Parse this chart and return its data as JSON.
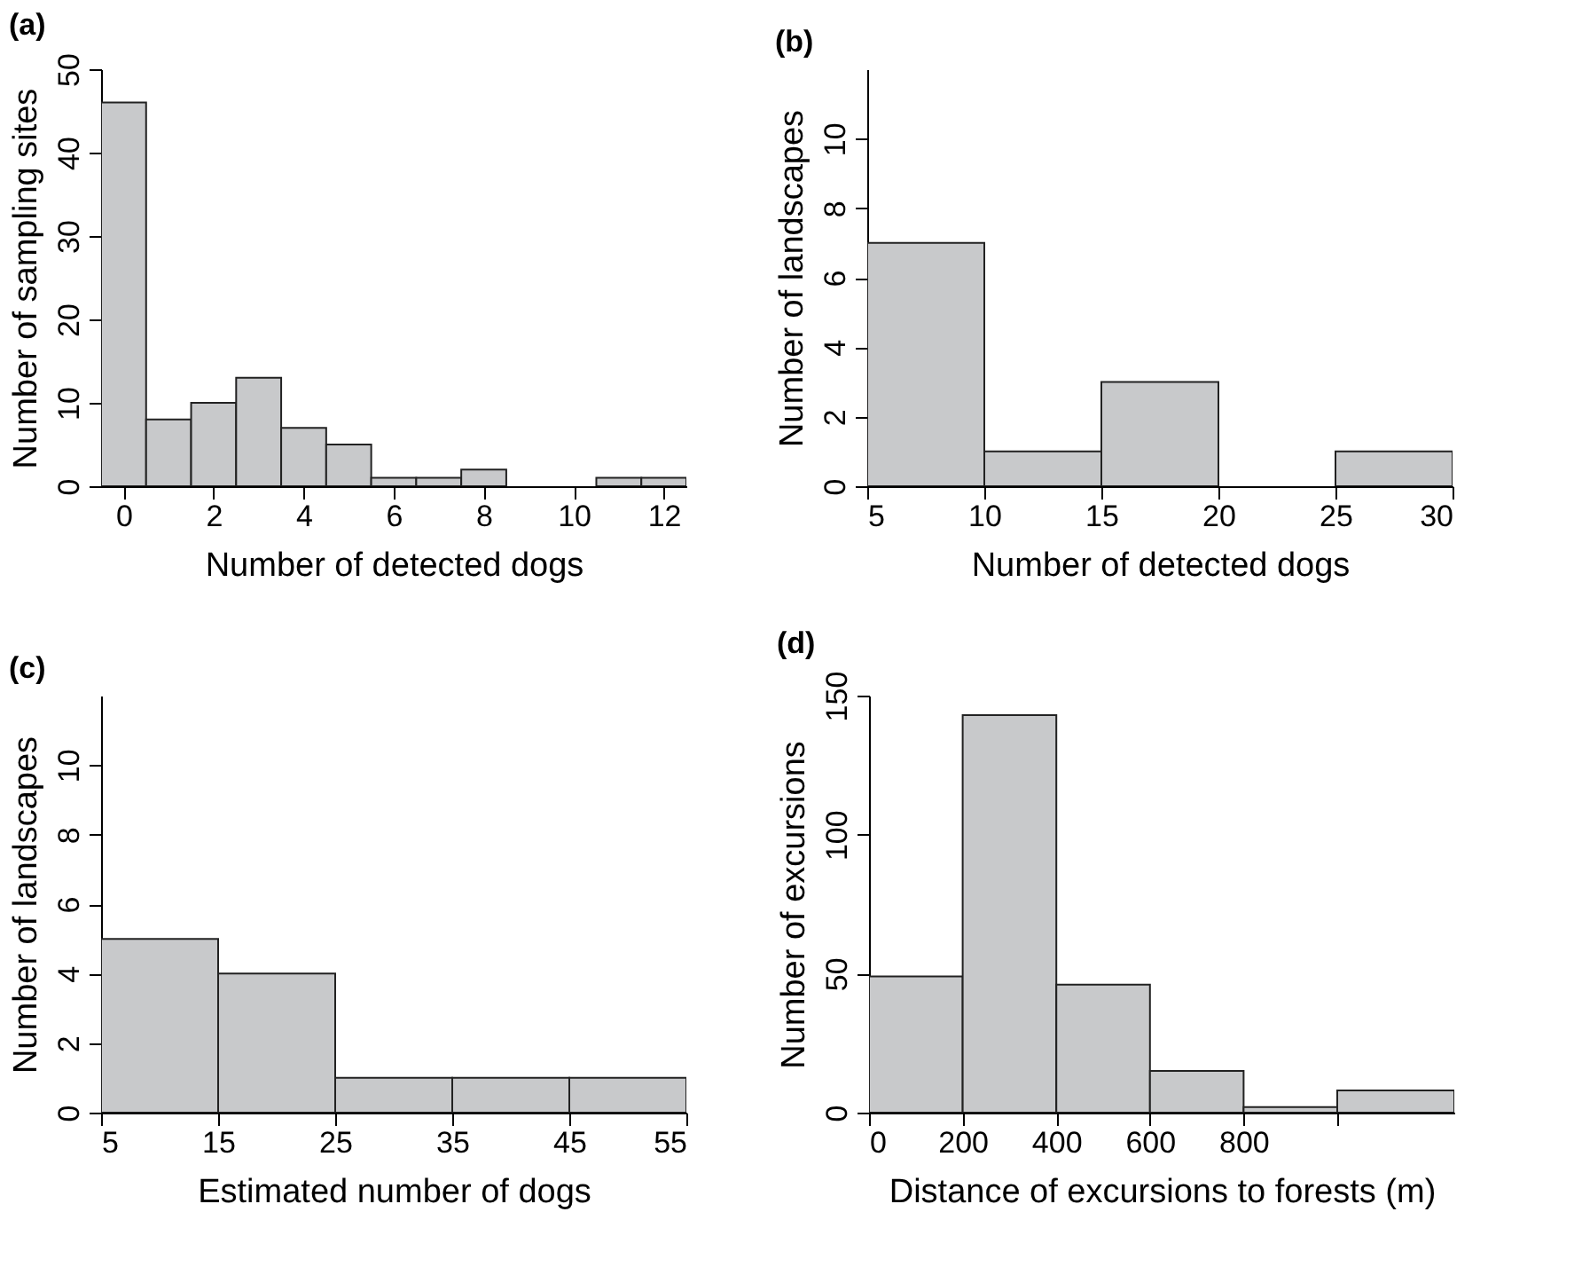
{
  "chart_data": [
    {
      "type": "histogram",
      "title": "(a)",
      "xlabel": "Number of detected dogs",
      "ylabel": "Number of sampling sites",
      "bins": [
        -0.5,
        0.5,
        1.5,
        2.5,
        3.5,
        4.5,
        5.5,
        6.5,
        7.5,
        8.5,
        9.5,
        10.5,
        11.5,
        12.5
      ],
      "values": [
        46,
        8,
        10,
        13,
        7,
        5,
        1,
        1,
        2,
        0,
        0,
        1,
        1
      ],
      "color": "#c8c9cb",
      "xlim": [
        -0.5,
        12.5
      ],
      "xticks": [
        0,
        2,
        4,
        6,
        8,
        10,
        12
      ],
      "ylim": [
        0,
        50
      ],
      "yticks": [
        0,
        10,
        20,
        30,
        40,
        50
      ]
    },
    {
      "type": "histogram",
      "title": "(b)",
      "xlabel": "Number of detected dogs",
      "ylabel": "Number of landscapes",
      "bins": [
        5,
        10,
        15,
        20,
        25,
        30
      ],
      "values": [
        7,
        1,
        3,
        0,
        1
      ],
      "color": "#c8c9cb",
      "xlim": [
        5,
        30
      ],
      "xticks": [
        5,
        10,
        15,
        20,
        25,
        30
      ],
      "ylim": [
        0,
        12
      ],
      "yticks": [
        0,
        2,
        4,
        6,
        8,
        10
      ]
    },
    {
      "type": "histogram",
      "title": "(c)",
      "xlabel": "Estimated number of dogs",
      "ylabel": "Number of landscapes",
      "bins": [
        5,
        15,
        25,
        35,
        45,
        55
      ],
      "values": [
        5,
        4,
        1,
        1,
        1
      ],
      "color": "#c8c9cb",
      "xlim": [
        5,
        55
      ],
      "xticks": [
        5,
        15,
        25,
        35,
        45,
        55
      ],
      "ylim": [
        0,
        12
      ],
      "yticks": [
        0,
        2,
        4,
        6,
        8,
        10
      ]
    },
    {
      "type": "histogram",
      "title": "(d)",
      "xlabel": "Distance of excursions to forests (m)",
      "ylabel": "Number of excursions",
      "bins": [
        0,
        200,
        400,
        600,
        800,
        1000,
        1250
      ],
      "values": [
        49,
        143,
        46,
        15,
        2,
        8
      ],
      "color": "#c8c9cb",
      "xlim": [
        0,
        1250
      ],
      "xticks": [
        0,
        200,
        400,
        600,
        800,
        {
          "value": 1000,
          "label": null
        }
      ],
      "ylim": [
        0,
        150
      ],
      "yticks": [
        0,
        50,
        100,
        150
      ]
    }
  ]
}
